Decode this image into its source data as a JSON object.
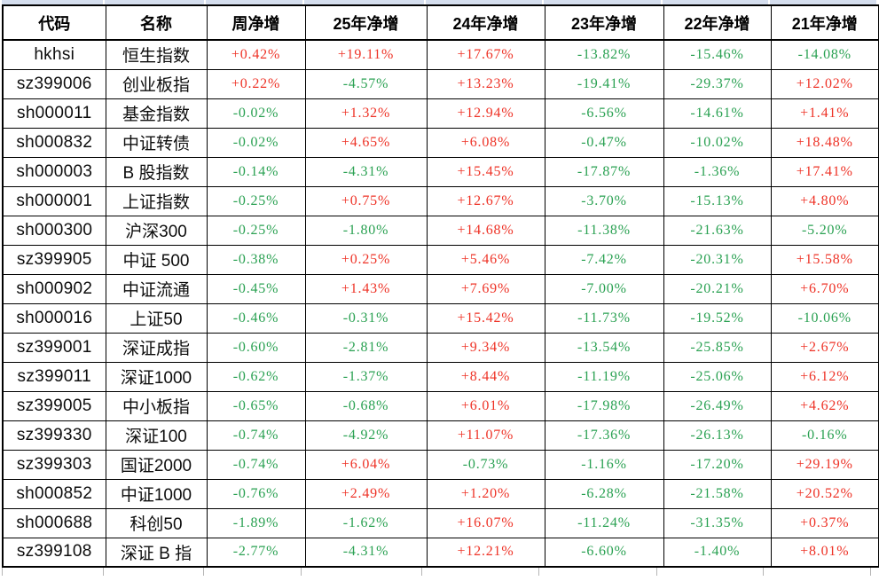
{
  "colors": {
    "positive": "#ee3226",
    "negative": "#2aa152",
    "grid_line": "#000000",
    "partial_row_fill": "#d5deee"
  },
  "table": {
    "columns": [
      "代码",
      "名称",
      "周净增",
      "25年净增",
      "24年净增",
      "23年净增",
      "22年净增",
      "21年净增"
    ],
    "rows": [
      {
        "code": "hkhsi",
        "name": "恒生指数",
        "values": [
          "+0.42%",
          "+19.11%",
          "+17.67%",
          "-13.82%",
          "-15.46%",
          "-14.08%"
        ]
      },
      {
        "code": "sz399006",
        "name": "创业板指",
        "values": [
          "+0.22%",
          "-4.57%",
          "+13.23%",
          "-19.41%",
          "-29.37%",
          "+12.02%"
        ]
      },
      {
        "code": "sh000011",
        "name": "基金指数",
        "values": [
          "-0.02%",
          "+1.32%",
          "+12.94%",
          "-6.56%",
          "-14.61%",
          "+1.41%"
        ]
      },
      {
        "code": "sh000832",
        "name": "中证转债",
        "values": [
          "-0.02%",
          "+4.65%",
          "+6.08%",
          "-0.47%",
          "-10.02%",
          "+18.48%"
        ]
      },
      {
        "code": "sh000003",
        "name": "B 股指数",
        "values": [
          "-0.14%",
          "-4.31%",
          "+15.45%",
          "-17.87%",
          "-1.36%",
          "+17.41%"
        ]
      },
      {
        "code": "sh000001",
        "name": "上证指数",
        "values": [
          "-0.25%",
          "+0.75%",
          "+12.67%",
          "-3.70%",
          "-15.13%",
          "+4.80%"
        ]
      },
      {
        "code": "sh000300",
        "name": "沪深300",
        "values": [
          "-0.25%",
          "-1.80%",
          "+14.68%",
          "-11.38%",
          "-21.63%",
          "-5.20%"
        ]
      },
      {
        "code": "sz399905",
        "name": "中证 500",
        "values": [
          "-0.38%",
          "+0.25%",
          "+5.46%",
          "-7.42%",
          "-20.31%",
          "+15.58%"
        ]
      },
      {
        "code": "sh000902",
        "name": "中证流通",
        "values": [
          "-0.45%",
          "+1.43%",
          "+7.69%",
          "-7.00%",
          "-20.21%",
          "+6.70%"
        ]
      },
      {
        "code": "sh000016",
        "name": "上证50",
        "values": [
          "-0.46%",
          "-0.31%",
          "+15.42%",
          "-11.73%",
          "-19.52%",
          "-10.06%"
        ]
      },
      {
        "code": "sz399001",
        "name": "深证成指",
        "values": [
          "-0.60%",
          "-2.81%",
          "+9.34%",
          "-13.54%",
          "-25.85%",
          "+2.67%"
        ]
      },
      {
        "code": "sz399011",
        "name": "深证1000",
        "values": [
          "-0.62%",
          "-1.37%",
          "+8.44%",
          "-11.19%",
          "-25.06%",
          "+6.12%"
        ]
      },
      {
        "code": "sz399005",
        "name": "中小板指",
        "values": [
          "-0.65%",
          "-0.68%",
          "+6.01%",
          "-17.98%",
          "-26.49%",
          "+4.62%"
        ]
      },
      {
        "code": "sz399330",
        "name": "深证100",
        "values": [
          "-0.74%",
          "-4.92%",
          "+11.07%",
          "-17.36%",
          "-26.13%",
          "-0.16%"
        ]
      },
      {
        "code": "sz399303",
        "name": "国证2000",
        "values": [
          "-0.74%",
          "+6.04%",
          "-0.73%",
          "-1.16%",
          "-17.20%",
          "+29.19%"
        ]
      },
      {
        "code": "sh000852",
        "name": "中证1000",
        "values": [
          "-0.76%",
          "+2.49%",
          "+1.20%",
          "-6.28%",
          "-21.58%",
          "+20.52%"
        ]
      },
      {
        "code": "sh000688",
        "name": "科创50",
        "values": [
          "-1.89%",
          "-1.62%",
          "+16.07%",
          "-11.24%",
          "-31.35%",
          "+0.37%"
        ]
      },
      {
        "code": "sz399108",
        "name": "深证 B 指",
        "values": [
          "-2.77%",
          "-4.31%",
          "+12.21%",
          "-6.60%",
          "-1.40%",
          "+8.01%"
        ]
      }
    ]
  },
  "chart_data": {
    "type": "table",
    "title": "",
    "categories": [
      "周净增",
      "25年净增",
      "24年净增",
      "23年净增",
      "22年净增",
      "21年净增"
    ],
    "note": "values are percent net change per index; see table.rows"
  }
}
